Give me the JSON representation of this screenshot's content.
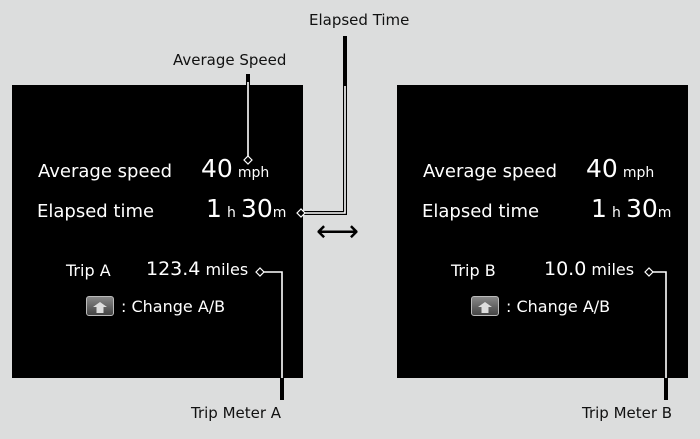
{
  "callouts": {
    "average_speed": "Average Speed",
    "elapsed_time": "Elapsed Time",
    "trip_meter_a": "Trip Meter A",
    "trip_meter_b": "Trip Meter B"
  },
  "arrow": "⟷",
  "panels": [
    {
      "avg_label": "Average speed",
      "avg_value": "40",
      "avg_unit": "mph",
      "elapsed_label": "Elapsed time",
      "hours": "1",
      "h_unit": "h",
      "minutes": "30",
      "m_unit": "m",
      "trip_label": "Trip A",
      "trip_value": "123.4",
      "trip_unit": "miles",
      "change_label": ": Change A/B",
      "button_icon": "steering-switch-up-icon"
    },
    {
      "avg_label": "Average speed",
      "avg_value": "40",
      "avg_unit": "mph",
      "elapsed_label": "Elapsed time",
      "hours": "1",
      "h_unit": "h",
      "minutes": "30",
      "m_unit": "m",
      "trip_label": "Trip B",
      "trip_value": "10.0",
      "trip_unit": "miles",
      "change_label": ": Change A/B",
      "button_icon": "steering-switch-up-icon"
    }
  ]
}
